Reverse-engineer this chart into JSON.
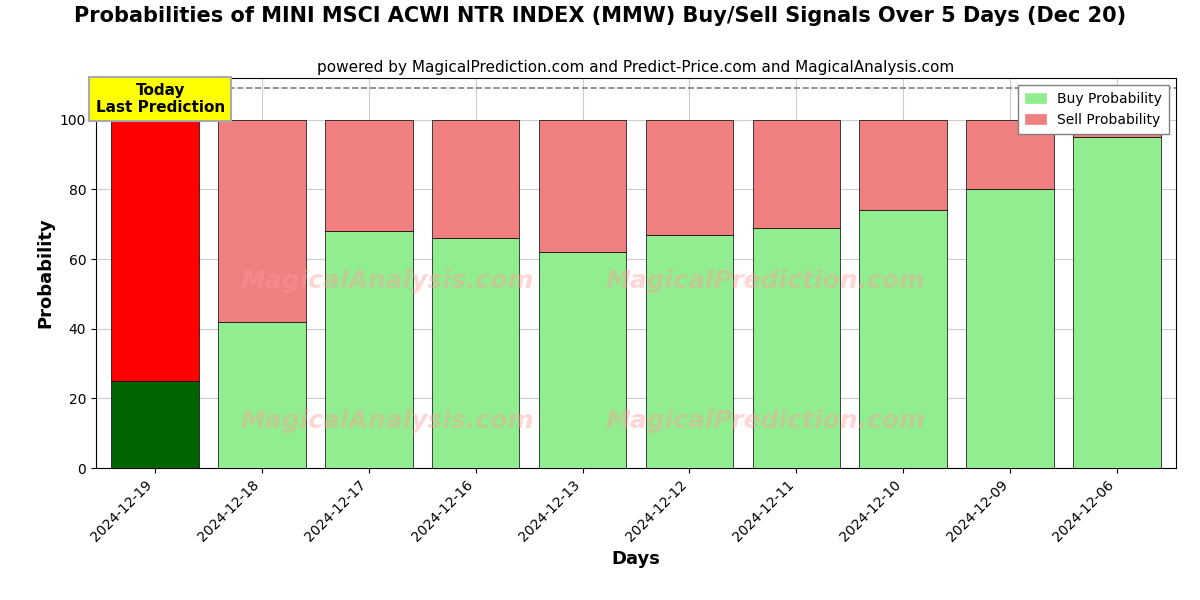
{
  "title": "Probabilities of MINI MSCI ACWI NTR INDEX (MMW) Buy/Sell Signals Over 5 Days (Dec 20)",
  "subtitle": "powered by MagicalPrediction.com and Predict-Price.com and MagicalAnalysis.com",
  "xlabel": "Days",
  "ylabel": "Probability",
  "dates": [
    "2024-12-19",
    "2024-12-18",
    "2024-12-17",
    "2024-12-16",
    "2024-12-13",
    "2024-12-12",
    "2024-12-11",
    "2024-12-10",
    "2024-12-09",
    "2024-12-06"
  ],
  "buy_values": [
    25,
    42,
    68,
    66,
    62,
    67,
    69,
    74,
    80,
    95
  ],
  "sell_values": [
    75,
    58,
    32,
    34,
    38,
    33,
    31,
    26,
    20,
    5
  ],
  "today_bar_buy_color": "#006400",
  "today_bar_sell_color": "#FF0000",
  "normal_bar_buy_color": "#90EE90",
  "normal_bar_sell_color": "#F08080",
  "today_annotation_text": "Today\nLast Prediction",
  "today_annotation_bg": "#FFFF00",
  "today_annotation_edge": "#AAAAAA",
  "legend_buy_label": "Buy Probability",
  "legend_sell_label": "Sell Probability",
  "ylim": [
    0,
    112
  ],
  "dashed_line_y": 109,
  "watermark_left": "MagicalAnalysis.com",
  "watermark_right": "MagicalPrediction.com",
  "watermark_color": "#FF9999",
  "watermark_alpha": 0.4,
  "background_color": "#FFFFFF",
  "grid_color": "#CCCCCC",
  "title_fontsize": 15,
  "subtitle_fontsize": 11,
  "axis_label_fontsize": 13,
  "tick_fontsize": 10
}
